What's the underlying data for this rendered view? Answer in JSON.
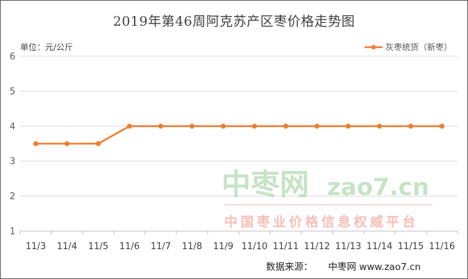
{
  "chart_data": {
    "type": "line",
    "title": "2019年第46周阿克苏产区枣价格走势图",
    "unit_label": "单位：元/公斤",
    "categories": [
      "11/3",
      "11/4",
      "11/5",
      "11/6",
      "11/7",
      "11/8",
      "11/9",
      "11/10",
      "11/11",
      "11/12",
      "11/13",
      "11/14",
      "11/15",
      "11/16"
    ],
    "series": [
      {
        "name": "灰枣统货（新枣）",
        "values": [
          3.5,
          3.5,
          3.5,
          4,
          4,
          4,
          4,
          4,
          4,
          4,
          4,
          4,
          4,
          4
        ],
        "color": "#ED7D31"
      }
    ],
    "ylim": [
      1,
      6
    ],
    "yticks": [
      1,
      2,
      3,
      4,
      5,
      6
    ],
    "grid": true,
    "legend_position": "top-right"
  },
  "watermark": {
    "main": "中枣网",
    "domain": "zao7.cn",
    "slogan": "中国枣业价格信息权威平台"
  },
  "source": {
    "label": "数据来源：",
    "value": "中枣网 www.zao7.cn"
  }
}
